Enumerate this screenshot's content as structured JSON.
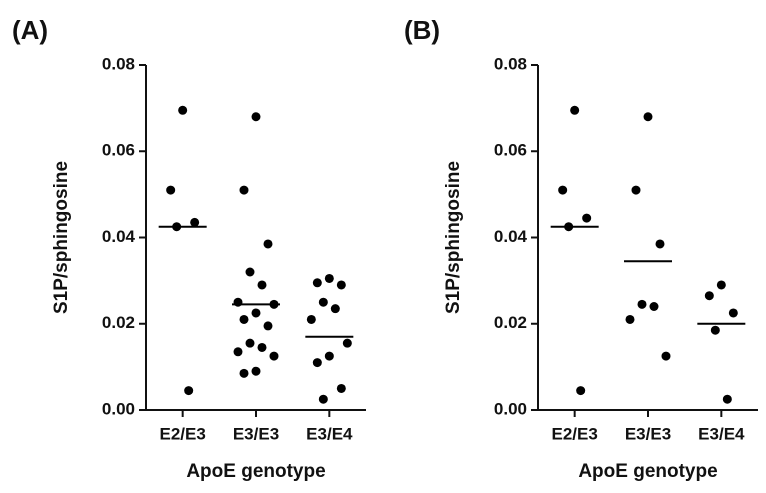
{
  "chart_data": [
    {
      "type": "dotplot",
      "title": "(A)",
      "y_label": "S1P/sphingosine",
      "x_label": "ApoE genotype",
      "categories": [
        "E2/E3",
        "E3/E3",
        "E3/E4"
      ],
      "points": [
        [
          0.0695,
          0.051,
          0.0435,
          0.0425,
          0.0045
        ],
        [
          0.068,
          0.051,
          0.0385,
          0.032,
          0.029,
          0.025,
          0.0245,
          0.0225,
          0.021,
          0.0195,
          0.0155,
          0.0145,
          0.0135,
          0.0125,
          0.009,
          0.0085
        ],
        [
          0.0305,
          0.0295,
          0.029,
          0.025,
          0.0235,
          0.021,
          0.0155,
          0.0125,
          0.011,
          0.005,
          0.0025
        ]
      ],
      "medians": [
        0.0425,
        0.0245,
        0.017
      ],
      "color": "#000000",
      "ylim": [
        0,
        0.08
      ],
      "yticks": [
        {
          "value": 0,
          "label": "0.00"
        },
        {
          "value": 0.02,
          "label": "0.02"
        },
        {
          "value": 0.04,
          "label": "0.04"
        },
        {
          "value": 0.06,
          "label": "0.06"
        },
        {
          "value": 0.08,
          "label": "0.08"
        }
      ]
    },
    {
      "type": "dotplot",
      "title": "(B)",
      "y_label": "S1P/sphingosine",
      "x_label": "ApoE genotype",
      "categories": [
        "E2/E3",
        "E3/E3",
        "E3/E4"
      ],
      "points": [
        [
          0.0695,
          0.051,
          0.0445,
          0.0425,
          0.0045
        ],
        [
          0.068,
          0.051,
          0.0385,
          0.0245,
          0.024,
          0.021,
          0.0125
        ],
        [
          0.029,
          0.0265,
          0.0225,
          0.0185,
          0.0025
        ]
      ],
      "medians": [
        0.0425,
        0.0345,
        0.02
      ],
      "color": "#000000",
      "ylim": [
        0,
        0.08
      ],
      "yticks": [
        {
          "value": 0,
          "label": "0.00"
        },
        {
          "value": 0.02,
          "label": "0.02"
        },
        {
          "value": 0.04,
          "label": "0.04"
        },
        {
          "value": 0.06,
          "label": "0.06"
        },
        {
          "value": 0.08,
          "label": "0.08"
        }
      ]
    }
  ]
}
